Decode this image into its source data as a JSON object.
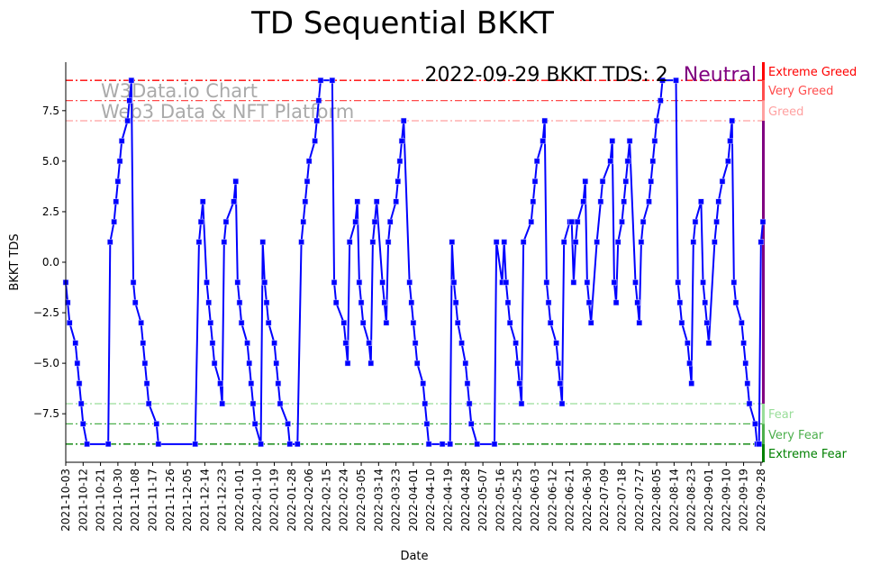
{
  "chart_data": {
    "type": "line",
    "title": "TD Sequential BKKT",
    "xlabel": "Date",
    "ylabel": "BKKT TDS",
    "ylim": [
      -9.9,
      9.9
    ],
    "xlim_days": [
      0,
      361
    ],
    "start_date": "2021-10-03",
    "grid": false,
    "series_color": "#0000ff",
    "yticks": [
      -7.5,
      -5.0,
      -2.5,
      0.0,
      2.5,
      5.0,
      7.5
    ],
    "ytick_labels": [
      "−7.5",
      "−5.0",
      "−2.5",
      "0.0",
      "2.5",
      "5.0",
      "7.5"
    ],
    "xtick_days_step": 9,
    "xtick_labels": [
      "2021-10-03",
      "2021-10-12",
      "2021-10-21",
      "2021-10-30",
      "2021-11-08",
      "2021-11-17",
      "2021-11-26",
      "2021-12-05",
      "2021-12-14",
      "2021-12-23",
      "2022-01-01",
      "2022-01-10",
      "2022-01-19",
      "2022-01-28",
      "2022-02-06",
      "2022-02-15",
      "2022-02-24",
      "2022-03-05",
      "2022-03-14",
      "2022-03-23",
      "2022-04-01",
      "2022-04-10",
      "2022-04-19",
      "2022-04-28",
      "2022-05-07",
      "2022-05-16",
      "2022-05-25",
      "2022-06-03",
      "2022-06-12",
      "2022-06-21",
      "2022-06-30",
      "2022-07-09",
      "2022-07-18",
      "2022-07-27",
      "2022-08-05",
      "2022-08-14",
      "2022-08-23",
      "2022-09-01",
      "2022-09-10",
      "2022-09-19",
      "2022-09-28"
    ],
    "points_day_value": [
      [
        0,
        -1
      ],
      [
        1,
        -2
      ],
      [
        2,
        -3
      ],
      [
        5,
        -4
      ],
      [
        6,
        -5
      ],
      [
        7,
        -6
      ],
      [
        8,
        -7
      ],
      [
        9,
        -8
      ],
      [
        11,
        -9
      ],
      [
        22,
        -9
      ],
      [
        23,
        1
      ],
      [
        25,
        2
      ],
      [
        26,
        3
      ],
      [
        27,
        4
      ],
      [
        28,
        5
      ],
      [
        29,
        6
      ],
      [
        32,
        7
      ],
      [
        33,
        8
      ],
      [
        34,
        9
      ],
      [
        35,
        -1
      ],
      [
        36,
        -2
      ],
      [
        39,
        -3
      ],
      [
        40,
        -4
      ],
      [
        41,
        -5
      ],
      [
        42,
        -6
      ],
      [
        43,
        -7
      ],
      [
        47,
        -8
      ],
      [
        48,
        -9
      ],
      [
        67,
        -9
      ],
      [
        69,
        1
      ],
      [
        70,
        2
      ],
      [
        71,
        3
      ],
      [
        73,
        -1
      ],
      [
        74,
        -2
      ],
      [
        75,
        -3
      ],
      [
        76,
        -4
      ],
      [
        77,
        -5
      ],
      [
        80,
        -6
      ],
      [
        81,
        -7
      ],
      [
        82,
        1
      ],
      [
        83,
        2
      ],
      [
        87,
        3
      ],
      [
        88,
        4
      ],
      [
        89,
        -1
      ],
      [
        90,
        -2
      ],
      [
        91,
        -3
      ],
      [
        94,
        -4
      ],
      [
        95,
        -5
      ],
      [
        96,
        -6
      ],
      [
        97,
        -7
      ],
      [
        98,
        -8
      ],
      [
        101,
        -9
      ],
      [
        102,
        1
      ],
      [
        103,
        -1
      ],
      [
        104,
        -2
      ],
      [
        105,
        -3
      ],
      [
        108,
        -4
      ],
      [
        109,
        -5
      ],
      [
        110,
        -6
      ],
      [
        111,
        -7
      ],
      [
        115,
        -8
      ],
      [
        116,
        -9
      ],
      [
        120,
        -9
      ],
      [
        122,
        1
      ],
      [
        123,
        2
      ],
      [
        124,
        3
      ],
      [
        125,
        4
      ],
      [
        126,
        5
      ],
      [
        129,
        6
      ],
      [
        130,
        7
      ],
      [
        131,
        8
      ],
      [
        132,
        9
      ],
      [
        138,
        9
      ],
      [
        139,
        -1
      ],
      [
        140,
        -2
      ],
      [
        144,
        -3
      ],
      [
        145,
        -4
      ],
      [
        146,
        -5
      ],
      [
        147,
        1
      ],
      [
        150,
        2
      ],
      [
        151,
        3
      ],
      [
        152,
        -1
      ],
      [
        153,
        -2
      ],
      [
        154,
        -3
      ],
      [
        157,
        -4
      ],
      [
        158,
        -5
      ],
      [
        159,
        1
      ],
      [
        160,
        2
      ],
      [
        161,
        3
      ],
      [
        164,
        -1
      ],
      [
        165,
        -2
      ],
      [
        166,
        -3
      ],
      [
        167,
        1
      ],
      [
        168,
        2
      ],
      [
        171,
        3
      ],
      [
        172,
        4
      ],
      [
        173,
        5
      ],
      [
        174,
        6
      ],
      [
        175,
        7
      ],
      [
        178,
        -1
      ],
      [
        179,
        -2
      ],
      [
        180,
        -3
      ],
      [
        181,
        -4
      ],
      [
        182,
        -5
      ],
      [
        185,
        -6
      ],
      [
        186,
        -7
      ],
      [
        187,
        -8
      ],
      [
        188,
        -9
      ],
      [
        195,
        -9
      ],
      [
        199,
        -9
      ],
      [
        200,
        1
      ],
      [
        201,
        -1
      ],
      [
        202,
        -2
      ],
      [
        203,
        -3
      ],
      [
        205,
        -4
      ],
      [
        207,
        -5
      ],
      [
        208,
        -6
      ],
      [
        209,
        -7
      ],
      [
        210,
        -8
      ],
      [
        213,
        -9
      ],
      [
        222,
        -9
      ],
      [
        223,
        1
      ],
      [
        226,
        -1
      ],
      [
        227,
        1
      ],
      [
        228,
        -1
      ],
      [
        229,
        -2
      ],
      [
        230,
        -3
      ],
      [
        233,
        -4
      ],
      [
        234,
        -5
      ],
      [
        235,
        -6
      ],
      [
        236,
        -7
      ],
      [
        237,
        1
      ],
      [
        241,
        2
      ],
      [
        242,
        3
      ],
      [
        243,
        4
      ],
      [
        244,
        5
      ],
      [
        247,
        6
      ],
      [
        248,
        7
      ],
      [
        249,
        -1
      ],
      [
        250,
        -2
      ],
      [
        251,
        -3
      ],
      [
        254,
        -4
      ],
      [
        255,
        -5
      ],
      [
        256,
        -6
      ],
      [
        257,
        -7
      ],
      [
        258,
        1
      ],
      [
        261,
        2
      ],
      [
        262,
        2
      ],
      [
        263,
        -1
      ],
      [
        264,
        1
      ],
      [
        265,
        2
      ],
      [
        268,
        3
      ],
      [
        269,
        4
      ],
      [
        270,
        -1
      ],
      [
        271,
        -2
      ],
      [
        272,
        -3
      ],
      [
        275,
        1
      ],
      [
        277,
        3
      ],
      [
        278,
        4
      ],
      [
        282,
        5
      ],
      [
        283,
        6
      ],
      [
        284,
        -1
      ],
      [
        285,
        -2
      ],
      [
        286,
        1
      ],
      [
        288,
        2
      ],
      [
        289,
        3
      ],
      [
        290,
        4
      ],
      [
        291,
        5
      ],
      [
        292,
        6
      ],
      [
        295,
        -1
      ],
      [
        296,
        -2
      ],
      [
        297,
        -3
      ],
      [
        298,
        1
      ],
      [
        299,
        2
      ],
      [
        302,
        3
      ],
      [
        303,
        4
      ],
      [
        304,
        5
      ],
      [
        305,
        6
      ],
      [
        306,
        7
      ],
      [
        308,
        8
      ],
      [
        309,
        9
      ],
      [
        316,
        9
      ],
      [
        317,
        -1
      ],
      [
        318,
        -2
      ],
      [
        319,
        -3
      ],
      [
        322,
        -4
      ],
      [
        323,
        -5
      ],
      [
        324,
        -6
      ],
      [
        325,
        1
      ],
      [
        326,
        2
      ],
      [
        329,
        3
      ],
      [
        330,
        -1
      ],
      [
        331,
        -2
      ],
      [
        332,
        -3
      ],
      [
        333,
        -4
      ],
      [
        336,
        1
      ],
      [
        337,
        2
      ],
      [
        338,
        3
      ],
      [
        340,
        4
      ],
      [
        343,
        5
      ],
      [
        344,
        6
      ],
      [
        345,
        7
      ],
      [
        346,
        -1
      ],
      [
        347,
        -2
      ],
      [
        350,
        -3
      ],
      [
        351,
        -4
      ],
      [
        352,
        -5
      ],
      [
        353,
        -6
      ],
      [
        354,
        -7
      ],
      [
        357,
        -8
      ],
      [
        358,
        -9
      ],
      [
        359,
        -9
      ],
      [
        360,
        1
      ],
      [
        361,
        2
      ]
    ],
    "levels": [
      {
        "name": "Extreme Greed",
        "value": 9,
        "color": "#ff0000"
      },
      {
        "name": "Very Greed",
        "value": 8,
        "color": "#ff4c4c"
      },
      {
        "name": "Greed",
        "value": 7,
        "color": "#ffa0a0"
      },
      {
        "name": "Fear",
        "value": -7,
        "color": "#99dd99"
      },
      {
        "name": "Very Fear",
        "value": -8,
        "color": "#4caf4c"
      },
      {
        "name": "Extreme Fear",
        "value": -9,
        "color": "#008000"
      }
    ],
    "neutral_color": "#800080",
    "annotation": {
      "text": "2022-09-29 BKKT TDS: 2",
      "state": "Neutral",
      "state_color": "#800080"
    },
    "watermark": [
      "W3Data.io Chart",
      "Web3 Data & NFT Platform"
    ]
  }
}
